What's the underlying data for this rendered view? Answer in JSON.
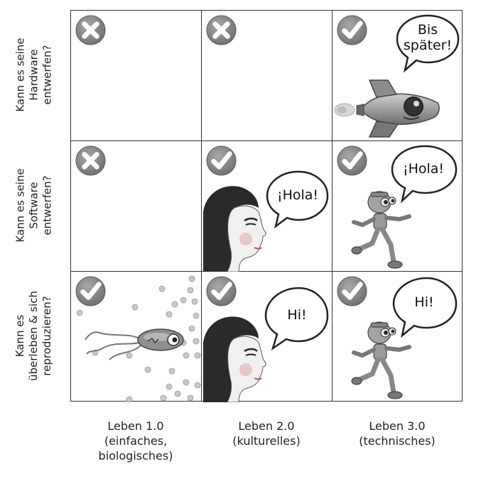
{
  "rows": [
    {
      "label_lines": [
        "Kann es seine",
        "Hardware",
        "entwerfen?"
      ]
    },
    {
      "label_lines": [
        "Kann es seine",
        "Software",
        "entwerfen?"
      ]
    },
    {
      "label_lines": [
        "Kann es",
        "überleben & sich",
        "reproduzieren?"
      ]
    }
  ],
  "columns": [
    {
      "line1": "Leben 1.0",
      "line2": "(einfaches,",
      "line3": "biologisches)"
    },
    {
      "line1": "Leben 2.0",
      "line2": "(kulturelles)",
      "line3": ""
    },
    {
      "line1": "Leben 3.0",
      "line2": "(technisches)",
      "line3": ""
    }
  ],
  "cells": {
    "r1c1": {
      "icon": "cross-icon"
    },
    "r1c2": {
      "icon": "cross-icon"
    },
    "r1c3": {
      "icon": "check-icon",
      "speech_line1": "Bis",
      "speech_line2": "später!",
      "illustration": "rocket"
    },
    "r2c1": {
      "icon": "cross-icon"
    },
    "r2c2": {
      "icon": "check-icon",
      "speech": "¡Hola!",
      "illustration": "woman"
    },
    "r2c3": {
      "icon": "check-icon",
      "speech": "¡Hola!",
      "illustration": "robot"
    },
    "r3c1": {
      "icon": "check-icon",
      "illustration": "bacterium"
    },
    "r3c2": {
      "icon": "check-icon",
      "speech": "Hi!",
      "illustration": "woman"
    },
    "r3c3": {
      "icon": "check-icon",
      "speech": "Hi!",
      "illustration": "robot"
    }
  },
  "colors": {
    "icon_gray": "#8a8a8a",
    "line": "#333333"
  }
}
